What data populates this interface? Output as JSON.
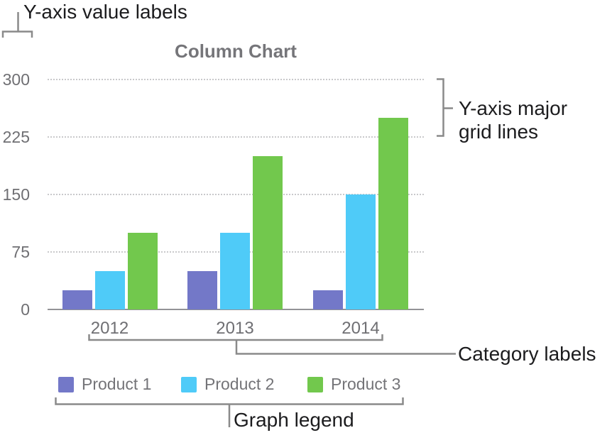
{
  "annotations": {
    "y_axis_value_labels": "Y-axis value labels",
    "y_axis_major_grid_lines": "Y-axis major grid lines",
    "category_labels": "Category labels",
    "graph_legend": "Graph legend"
  },
  "chart_data": {
    "type": "bar",
    "title": "Column Chart",
    "categories": [
      "2012",
      "2013",
      "2014"
    ],
    "series": [
      {
        "name": "Product 1",
        "color": "#7378c8",
        "values": [
          25,
          50,
          25
        ]
      },
      {
        "name": "Product 2",
        "color": "#4fcbf8",
        "values": [
          50,
          100,
          150
        ]
      },
      {
        "name": "Product 3",
        "color": "#72c84d",
        "values": [
          100,
          200,
          250
        ]
      }
    ],
    "y_ticks": [
      0,
      75,
      150,
      225,
      300
    ],
    "ylim": [
      0,
      300
    ],
    "xlabel": "",
    "ylabel": "",
    "grid": "horizontal-dotted-major",
    "legend_position": "bottom"
  },
  "colors": {
    "annotation_text": "#1c1c1e",
    "connector": "#8a8a8a",
    "chart_text": "#6f6f73",
    "title_text": "#757579",
    "gridline": "#c9c9cb",
    "axis_line": "#939397",
    "background": "#ffffff"
  }
}
